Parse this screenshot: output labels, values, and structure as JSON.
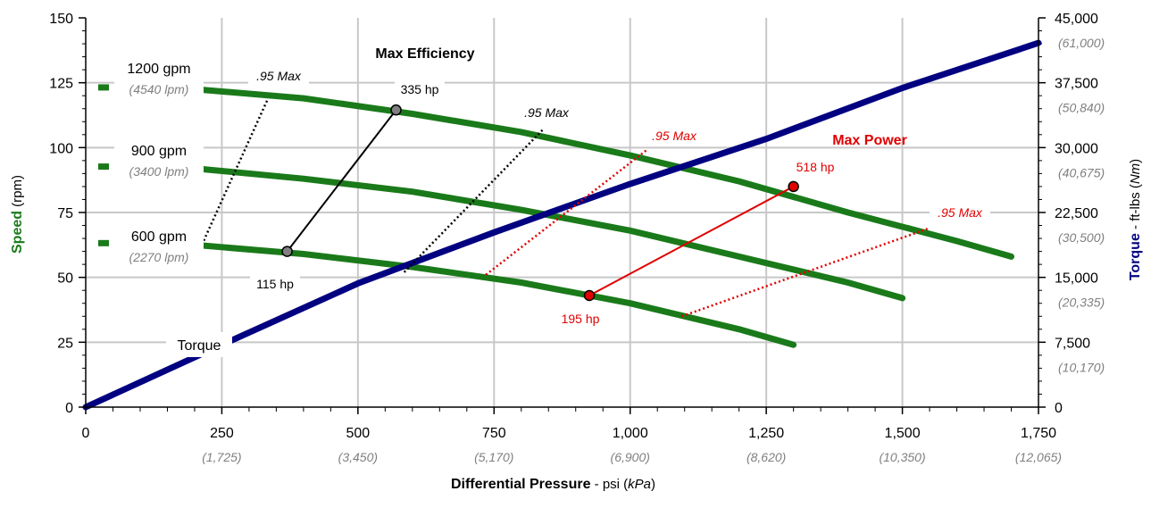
{
  "chart_data": {
    "type": "line",
    "xlabel": {
      "bold": "Differential Pressure",
      "rest": " - psi (",
      "italic": "kPa",
      "close": ")"
    },
    "ylabel_left": {
      "bold": "Speed",
      "rest": " (rpm)"
    },
    "ylabel_right": {
      "bold": "Torque",
      "rest": " - ft-lbs (",
      "italic": "Nm",
      "close": ")"
    },
    "xlim": [
      0,
      1750
    ],
    "ylim_left": [
      0,
      150
    ],
    "ylim_right": [
      0,
      45000
    ],
    "x_ticks": [
      {
        "value": 0,
        "label": "0",
        "sub": ""
      },
      {
        "value": 250,
        "label": "250",
        "sub": "(1,725)"
      },
      {
        "value": 500,
        "label": "500",
        "sub": "(3,450)"
      },
      {
        "value": 750,
        "label": "750",
        "sub": "(5,170)"
      },
      {
        "value": 1000,
        "label": "1,000",
        "sub": "(6,900)"
      },
      {
        "value": 1250,
        "label": "1,250",
        "sub": "(8,620)"
      },
      {
        "value": 1500,
        "label": "1,500",
        "sub": "(10,350)"
      },
      {
        "value": 1750,
        "label": "1,750",
        "sub": "(12,065)"
      }
    ],
    "y_left_ticks": [
      {
        "value": 0,
        "label": "0"
      },
      {
        "value": 25,
        "label": "25"
      },
      {
        "value": 50,
        "label": "50"
      },
      {
        "value": 75,
        "label": "75"
      },
      {
        "value": 100,
        "label": "100"
      },
      {
        "value": 125,
        "label": "125"
      },
      {
        "value": 150,
        "label": "150"
      }
    ],
    "y_right_ticks": [
      {
        "value": 0,
        "label": "0",
        "sub": ""
      },
      {
        "value": 7500,
        "label": "7,500",
        "sub": "(10,170)"
      },
      {
        "value": 15000,
        "label": "15,000",
        "sub": "(20,335)"
      },
      {
        "value": 22500,
        "label": "22,500",
        "sub": "(30,500)"
      },
      {
        "value": 30000,
        "label": "30,000",
        "sub": "(40,675)"
      },
      {
        "value": 37500,
        "label": "37,500",
        "sub": "(50,840)"
      },
      {
        "value": 45000,
        "label": "45,000",
        "sub": "(61,000)"
      }
    ],
    "grid": true,
    "colors": {
      "speed": "#1a7a1a",
      "torque": "#000080",
      "max_power": "#e00000",
      "max_eff": "#000000",
      "marker_gray": "#808080"
    },
    "series": [
      {
        "name": "1200 gpm",
        "sub": "(4540 lpm)",
        "axis": "left",
        "x": [
          200,
          400,
          600,
          800,
          1000,
          1200,
          1400,
          1600,
          1700
        ],
        "y": [
          122.5,
          119,
          113,
          106,
          97,
          87,
          75,
          64,
          58
        ]
      },
      {
        "name": "900 gpm",
        "sub": "(3400 lpm)",
        "axis": "left",
        "x": [
          200,
          400,
          600,
          800,
          1000,
          1200,
          1400,
          1500
        ],
        "y": [
          92,
          88,
          83,
          76,
          68,
          58,
          48,
          42
        ]
      },
      {
        "name": "600 gpm",
        "sub": "(2270 lpm)",
        "axis": "left",
        "x": [
          200,
          400,
          600,
          800,
          1000,
          1200,
          1300
        ],
        "y": [
          62.5,
          59,
          54,
          48,
          40,
          30,
          24
        ]
      },
      {
        "name": "Torque",
        "axis": "right",
        "x": [
          0,
          250,
          500,
          750,
          1000,
          1250,
          1500,
          1750
        ],
        "y": [
          0,
          7200,
          14300,
          20200,
          25800,
          31000,
          36900,
          42100
        ]
      }
    ],
    "points": [
      {
        "label": "335 hp",
        "x": 570,
        "y": 114.5,
        "style": "gray"
      },
      {
        "label": "115 hp",
        "x": 370,
        "y": 60,
        "style": "gray"
      },
      {
        "label": "518 hp",
        "x": 1300,
        "y": 85,
        "style": "red"
      },
      {
        "label": "195 hp",
        "x": 925,
        "y": 43,
        "style": "red"
      }
    ],
    "annotations": {
      "max_efficiency": "Max Efficiency",
      "max_power": "Max Power",
      "max95": ".95 Max",
      "torque_label": "Torque"
    }
  }
}
